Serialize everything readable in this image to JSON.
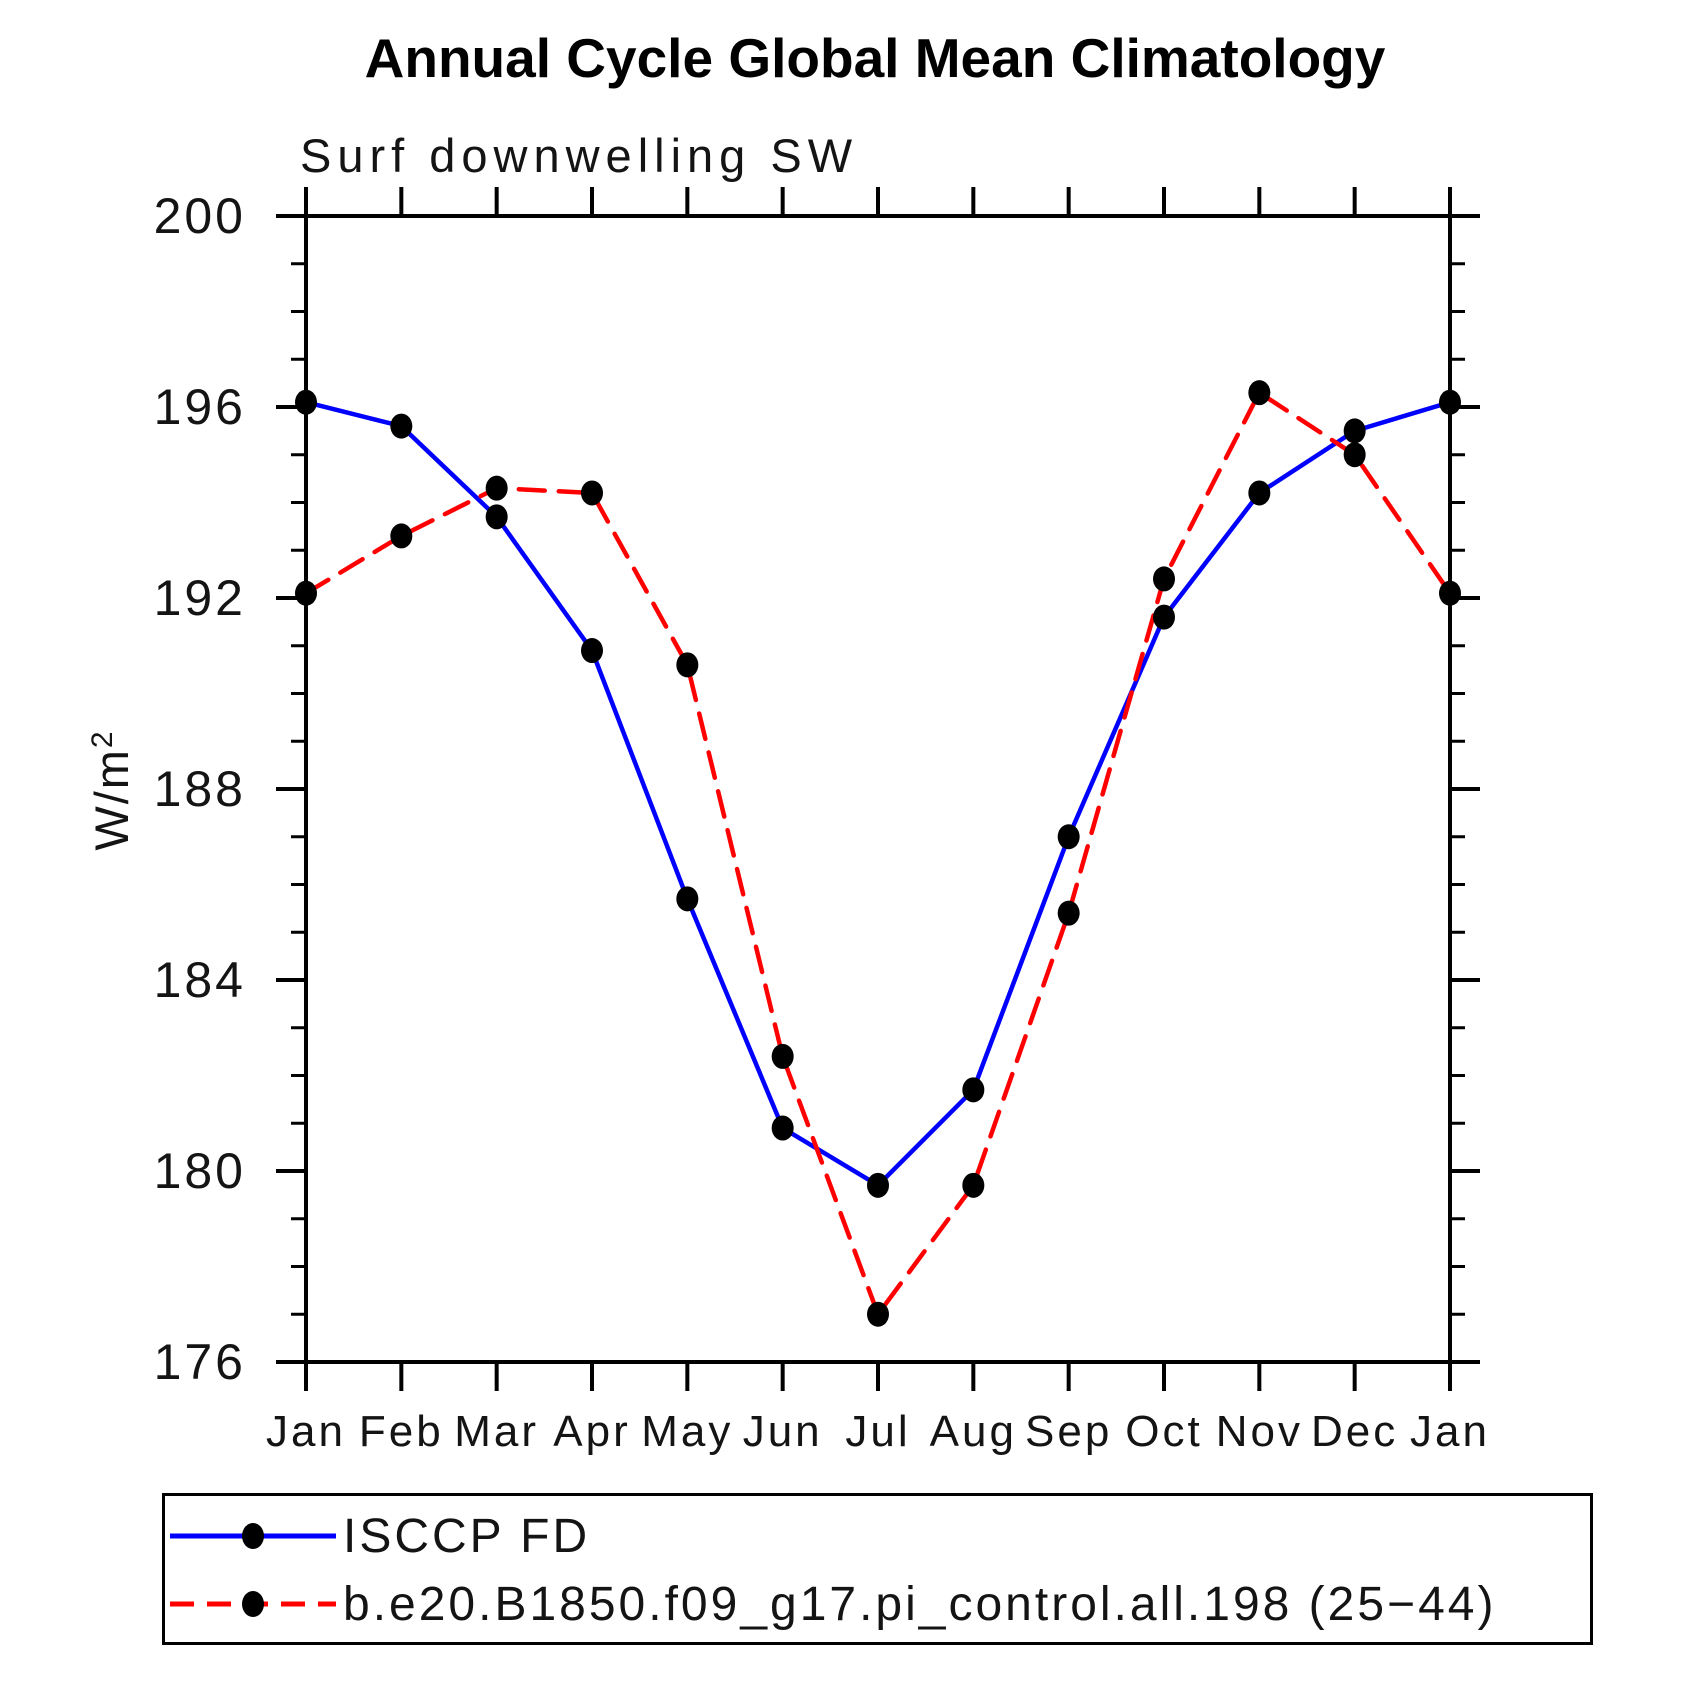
{
  "title": "Annual Cycle Global Mean Climatology",
  "subtitle": "Surf downwelling SW",
  "y_axis_label": {
    "base": "W/m",
    "sup": "2"
  },
  "chart_data": {
    "type": "line",
    "categories": [
      "Jan",
      "Feb",
      "Mar",
      "Apr",
      "May",
      "Jun",
      "Jul",
      "Aug",
      "Sep",
      "Oct",
      "Nov",
      "Dec",
      "Jan"
    ],
    "ylabel": "W/m²",
    "ylim": [
      176,
      200
    ],
    "yticks": [
      176,
      180,
      184,
      188,
      192,
      196,
      200
    ],
    "y_minor_tick_step": 1,
    "grid": false,
    "legend_position": "bottom-left",
    "marker": "filled-circle",
    "marker_color": "#000000",
    "axis_color": "#000000",
    "series": [
      {
        "name": "ISCCP FD",
        "color": "#0000ff",
        "line_style": "solid",
        "values": [
          196.1,
          195.6,
          193.7,
          190.9,
          185.7,
          180.9,
          179.7,
          181.7,
          187.0,
          191.6,
          194.2,
          195.5,
          196.1
        ]
      },
      {
        "name": "b.e20.B1850.f09_g17.pi_control.all.198 (25−44)",
        "color": "#ff0000",
        "line_style": "dashed",
        "values": [
          192.1,
          193.3,
          194.3,
          194.2,
          190.6,
          182.4,
          177.0,
          179.7,
          185.4,
          192.4,
          196.3,
          195.0,
          192.1
        ]
      }
    ]
  }
}
